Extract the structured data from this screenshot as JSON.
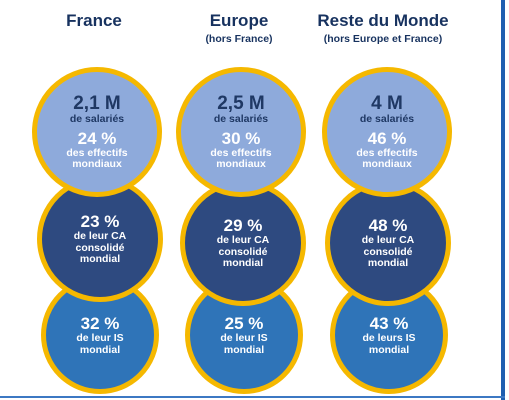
{
  "columns": [
    {
      "title": "France",
      "subtitle": "",
      "employees": {
        "value": "2,1 M",
        "label": "de salariés",
        "share": "24 %",
        "share_label_1": "des effectifs",
        "share_label_2": "mondiaux"
      },
      "revenue": {
        "share": "23 %",
        "label_1": "de leur CA",
        "label_2": "consolidé",
        "label_3": "mondial"
      },
      "tax": {
        "share": "32 %",
        "label_1": "de leur IS",
        "label_2": "mondial"
      }
    },
    {
      "title": "Europe",
      "subtitle": "(hors France)",
      "employees": {
        "value": "2,5 M",
        "label": "de salariés",
        "share": "30 %",
        "share_label_1": "des effectifs",
        "share_label_2": "mondiaux"
      },
      "revenue": {
        "share": "29 %",
        "label_1": "de leur CA",
        "label_2": "consolidé",
        "label_3": "mondial"
      },
      "tax": {
        "share": "25 %",
        "label_1": "de leur IS",
        "label_2": "mondial"
      }
    },
    {
      "title": "Reste du Monde",
      "subtitle": "(hors Europe et France)",
      "employees": {
        "value": "4 M",
        "label": "de salariés",
        "share": "46 %",
        "share_label_1": "des effectifs",
        "share_label_2": "mondiaux"
      },
      "revenue": {
        "share": "48 %",
        "label_1": "de leur CA",
        "label_2": "consolidé",
        "label_3": "mondial"
      },
      "tax": {
        "share": "43 %",
        "label_1": "de leurs IS",
        "label_2": "mondial"
      }
    }
  ],
  "colors": {
    "title_text": "#17325f",
    "ring": "#f5b800",
    "employees_fill": "#8eaadb",
    "revenue_fill": "#2e4a80",
    "tax_fill": "#2f74b8"
  }
}
